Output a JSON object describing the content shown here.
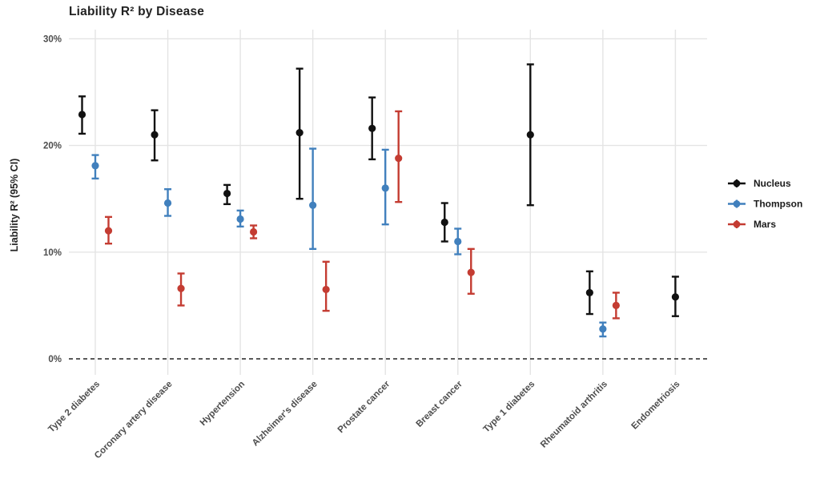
{
  "chart_data": {
    "type": "scatter",
    "subtype": "point-estimates-with-error-bars",
    "title": "Liability R² by Disease",
    "xlabel": "",
    "ylabel": "Liability R² (95% CI)",
    "ylim": [
      -1.5,
      31
    ],
    "grid": true,
    "legend_position": "right",
    "zero_line": {
      "value": 0,
      "style": "dashed",
      "color": "#222222"
    },
    "yticks": [
      {
        "value": 0,
        "label": "0%"
      },
      {
        "value": 10,
        "label": "10%"
      },
      {
        "value": 20,
        "label": "20%"
      },
      {
        "value": 30,
        "label": "30%"
      }
    ],
    "categories": [
      "Type 2 diabetes",
      "Coronary artery disease",
      "Hypertension",
      "Alzheimer's disease",
      "Prostate cancer",
      "Breast cancer",
      "Type 1 diabetes",
      "Rheumatoid arthritis",
      "Endometriosis"
    ],
    "series": [
      {
        "name": "Nucleus",
        "color": "#111111",
        "points": [
          {
            "est": 22.9,
            "lo": 21.1,
            "hi": 24.6
          },
          {
            "est": 21.0,
            "lo": 18.6,
            "hi": 23.3
          },
          {
            "est": 15.5,
            "lo": 14.5,
            "hi": 16.3
          },
          {
            "est": 21.2,
            "lo": 15.0,
            "hi": 27.2
          },
          {
            "est": 21.6,
            "lo": 18.7,
            "hi": 24.5
          },
          {
            "est": 12.8,
            "lo": 11.0,
            "hi": 14.6
          },
          {
            "est": 21.0,
            "lo": 14.4,
            "hi": 27.6
          },
          {
            "est": 6.2,
            "lo": 4.2,
            "hi": 8.2
          },
          {
            "est": 5.8,
            "lo": 4.0,
            "hi": 7.7
          }
        ]
      },
      {
        "name": "Thompson",
        "color": "#4180bd",
        "points": [
          {
            "est": 18.1,
            "lo": 16.9,
            "hi": 19.1
          },
          {
            "est": 14.6,
            "lo": 13.4,
            "hi": 15.9
          },
          {
            "est": 13.1,
            "lo": 12.4,
            "hi": 13.9
          },
          {
            "est": 14.4,
            "lo": 10.3,
            "hi": 19.7
          },
          {
            "est": 16.0,
            "lo": 12.6,
            "hi": 19.6
          },
          {
            "est": 11.0,
            "lo": 9.8,
            "hi": 12.2
          },
          null,
          {
            "est": 2.8,
            "lo": 2.1,
            "hi": 3.4
          },
          null
        ]
      },
      {
        "name": "Mars",
        "color": "#c43c32",
        "points": [
          {
            "est": 12.0,
            "lo": 10.8,
            "hi": 13.3
          },
          {
            "est": 6.6,
            "lo": 5.0,
            "hi": 8.0
          },
          {
            "est": 11.9,
            "lo": 11.3,
            "hi": 12.5
          },
          {
            "est": 6.5,
            "lo": 4.5,
            "hi": 9.1
          },
          {
            "est": 18.8,
            "lo": 14.7,
            "hi": 23.2
          },
          {
            "est": 8.1,
            "lo": 6.1,
            "hi": 10.3
          },
          null,
          {
            "est": 5.0,
            "lo": 3.8,
            "hi": 6.2
          },
          null
        ]
      }
    ]
  }
}
